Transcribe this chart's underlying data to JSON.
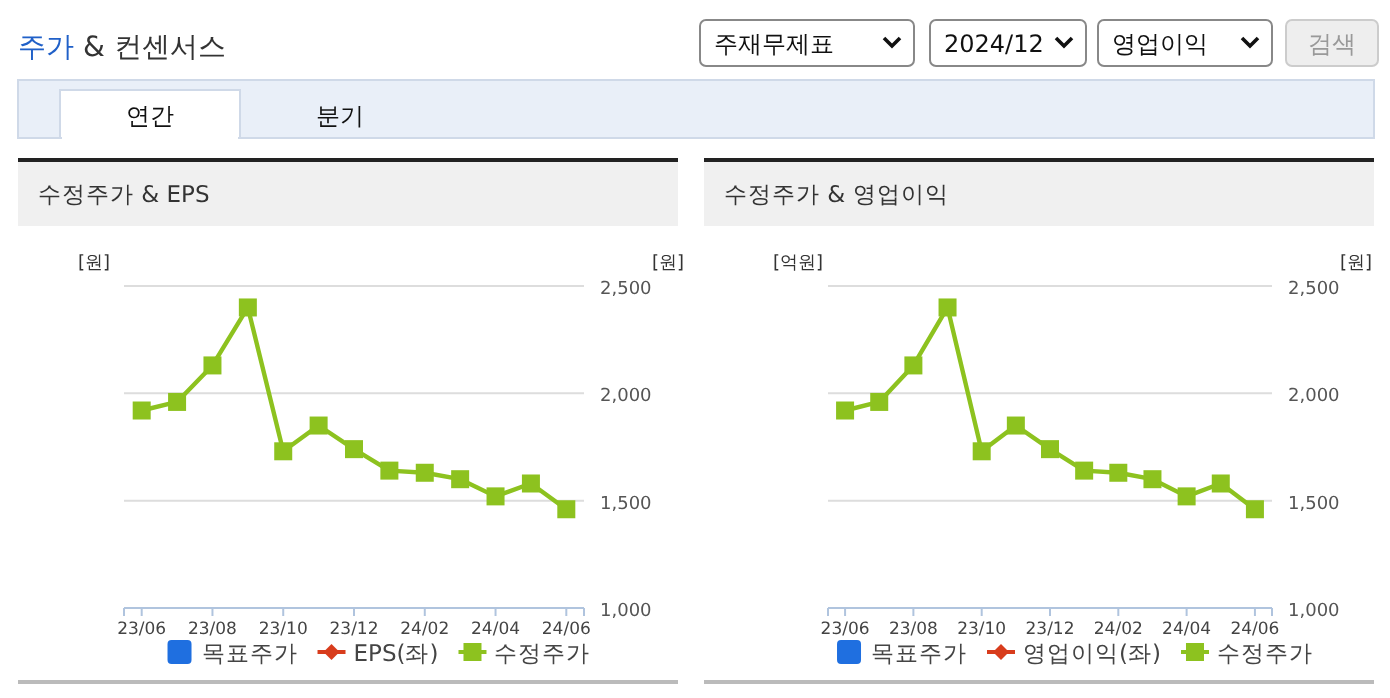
{
  "chart_data": [
    {
      "type": "other",
      "title": "주가 & 컨센서스",
      "annotations": [
        "주재무제표",
        "2024/12",
        "영업이익",
        "검색",
        "연간",
        "분기"
      ]
    },
    {
      "type": "line",
      "title": "수정주가 & EPS",
      "ylabel": "[원]",
      "y2label": "[원]",
      "categories": [
        "23/06",
        null,
        "23/08",
        null,
        "23/10",
        null,
        "23/12",
        null,
        "24/02",
        null,
        "24/04",
        null,
        "24/06"
      ],
      "y2lim": [
        1000,
        2500
      ],
      "y2ticks": [
        {
          "value": 1000,
          "label": "1,000"
        },
        {
          "value": 1500,
          "label": "1,500"
        },
        {
          "value": 2000,
          "label": "2,000"
        },
        {
          "value": 2500,
          "label": "2,500"
        }
      ],
      "grid": "y",
      "legend": "bottom",
      "line_style": "solid",
      "series": [
        {
          "name": "목표주가",
          "type": "bar",
          "color": "#1f6fe0",
          "values": [
            null,
            null,
            null,
            null,
            null,
            null,
            null,
            null,
            null,
            null,
            null,
            null,
            null
          ]
        },
        {
          "name": "EPS(좌)",
          "color": "#d83c1c",
          "marker": "diamond",
          "values": [
            null,
            null,
            null,
            null,
            null,
            null,
            null,
            null,
            null,
            null,
            null,
            null,
            null
          ]
        },
        {
          "name": "수정주가",
          "color": "#8dc21f",
          "marker": "square",
          "axis": "y2",
          "values": [
            1920,
            1960,
            2130,
            2400,
            1730,
            1850,
            1740,
            1640,
            1630,
            1600,
            1520,
            1580,
            1460
          ]
        }
      ]
    },
    {
      "type": "line",
      "title": "수정주가 & 영업이익",
      "ylabel": "[억원]",
      "y2label": "[원]",
      "categories": [
        "23/06",
        null,
        "23/08",
        null,
        "23/10",
        null,
        "23/12",
        null,
        "24/02",
        null,
        "24/04",
        null,
        "24/06"
      ],
      "y2lim": [
        1000,
        2500
      ],
      "y2ticks": [
        {
          "value": 1000,
          "label": "1,000"
        },
        {
          "value": 1500,
          "label": "1,500"
        },
        {
          "value": 2000,
          "label": "2,000"
        },
        {
          "value": 2500,
          "label": "2,500"
        }
      ],
      "grid": "y",
      "legend": "bottom",
      "line_style": "solid",
      "series": [
        {
          "name": "목표주가",
          "type": "bar",
          "color": "#1f6fe0",
          "values": [
            null,
            null,
            null,
            null,
            null,
            null,
            null,
            null,
            null,
            null,
            null,
            null,
            null
          ]
        },
        {
          "name": "영업이익(좌)",
          "color": "#d83c1c",
          "marker": "diamond",
          "values": [
            null,
            null,
            null,
            null,
            null,
            null,
            null,
            null,
            null,
            null,
            null,
            null,
            null
          ]
        },
        {
          "name": "수정주가",
          "color": "#8dc21f",
          "marker": "square",
          "axis": "y2",
          "values": [
            1920,
            1960,
            2130,
            2400,
            1730,
            1850,
            1740,
            1640,
            1630,
            1600,
            1520,
            1580,
            1460
          ]
        }
      ]
    }
  ]
}
